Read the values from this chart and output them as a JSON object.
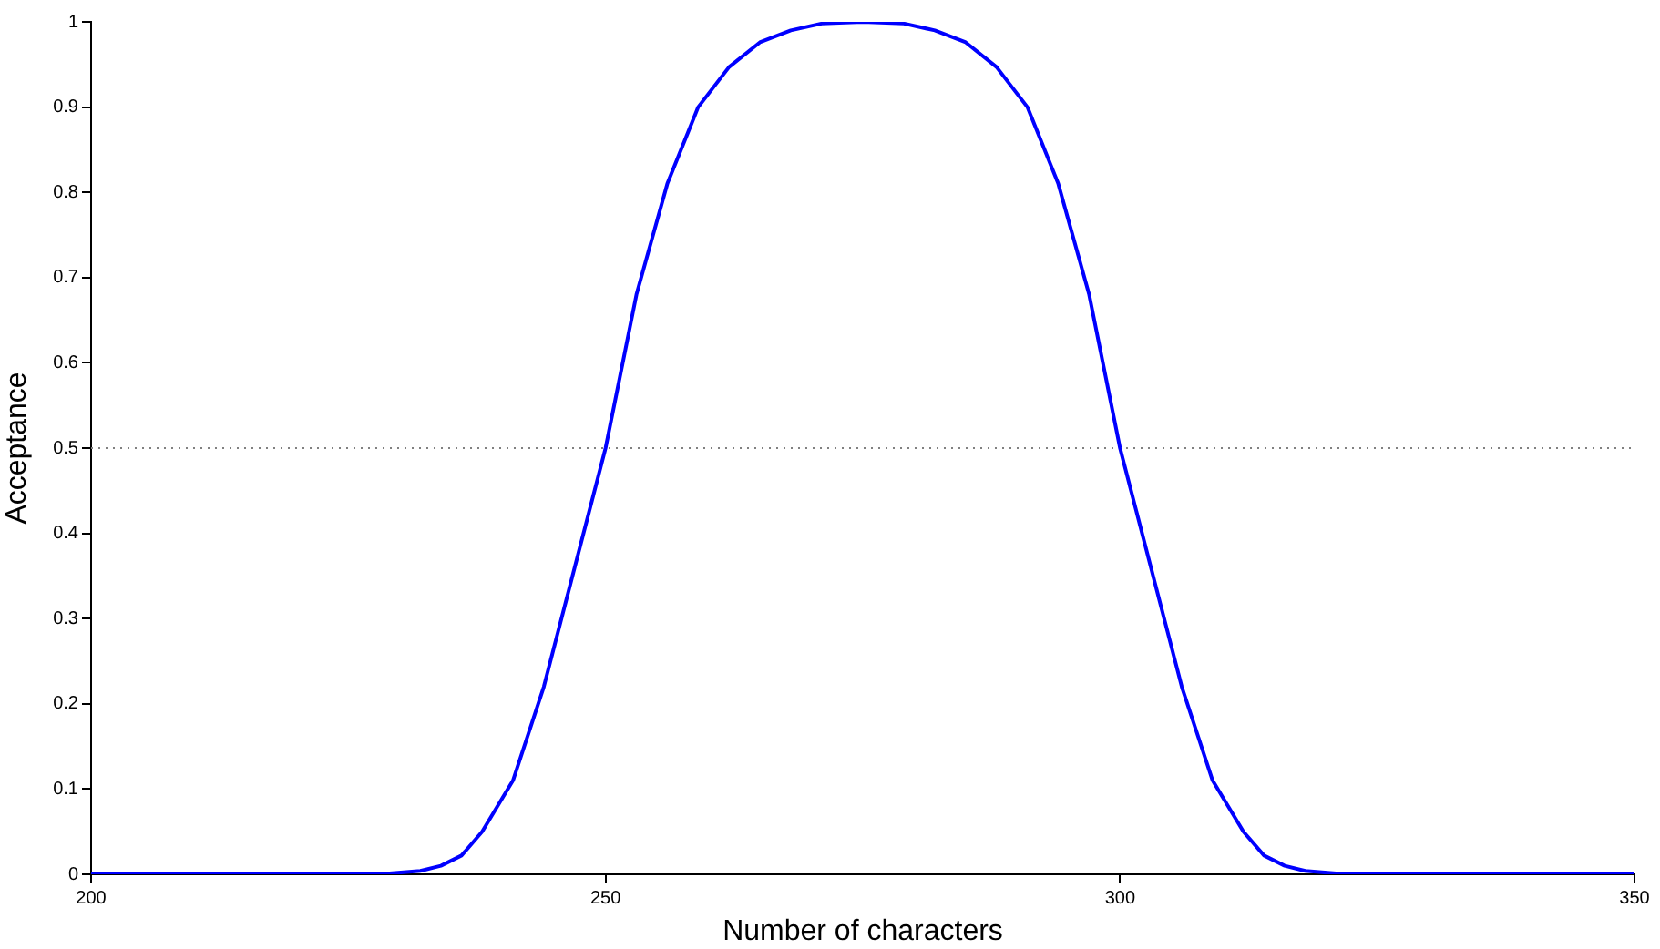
{
  "chart_data": {
    "type": "line",
    "xlabel": "Number of characters",
    "ylabel": "Acceptance",
    "x": [
      200,
      225,
      229,
      232,
      234,
      236,
      238,
      241,
      244,
      247,
      250,
      253,
      256,
      259,
      262,
      265,
      268,
      271,
      275,
      279,
      282,
      285,
      288,
      291,
      294,
      297,
      300,
      303,
      306,
      309,
      312,
      314,
      316,
      318,
      321,
      325,
      350
    ],
    "series": [
      {
        "color": "#0000ff",
        "values": [
          0,
          0,
          0.001,
          0.004,
          0.01,
          0.022,
          0.05,
          0.11,
          0.22,
          0.36,
          0.5,
          0.68,
          0.81,
          0.9,
          0.947,
          0.976,
          0.99,
          0.998,
          1,
          0.998,
          0.99,
          0.976,
          0.947,
          0.9,
          0.81,
          0.68,
          0.5,
          0.36,
          0.22,
          0.11,
          0.05,
          0.022,
          0.01,
          0.004,
          0.001,
          0,
          0
        ]
      }
    ],
    "xlim": [
      200,
      350
    ],
    "xticks": [
      200,
      250,
      300,
      350
    ],
    "ylim": [
      0,
      1
    ],
    "yticks": [
      0,
      0.1,
      0.2,
      0.3,
      0.4,
      0.5,
      0.6,
      0.7,
      0.8,
      0.9,
      1
    ],
    "ref_lines": [
      {
        "axis": "y",
        "value": 0.5,
        "color": "#808080",
        "line_style": "dotted"
      }
    ],
    "grid": false,
    "legend": false,
    "marker": "none",
    "line_style": "solid"
  }
}
